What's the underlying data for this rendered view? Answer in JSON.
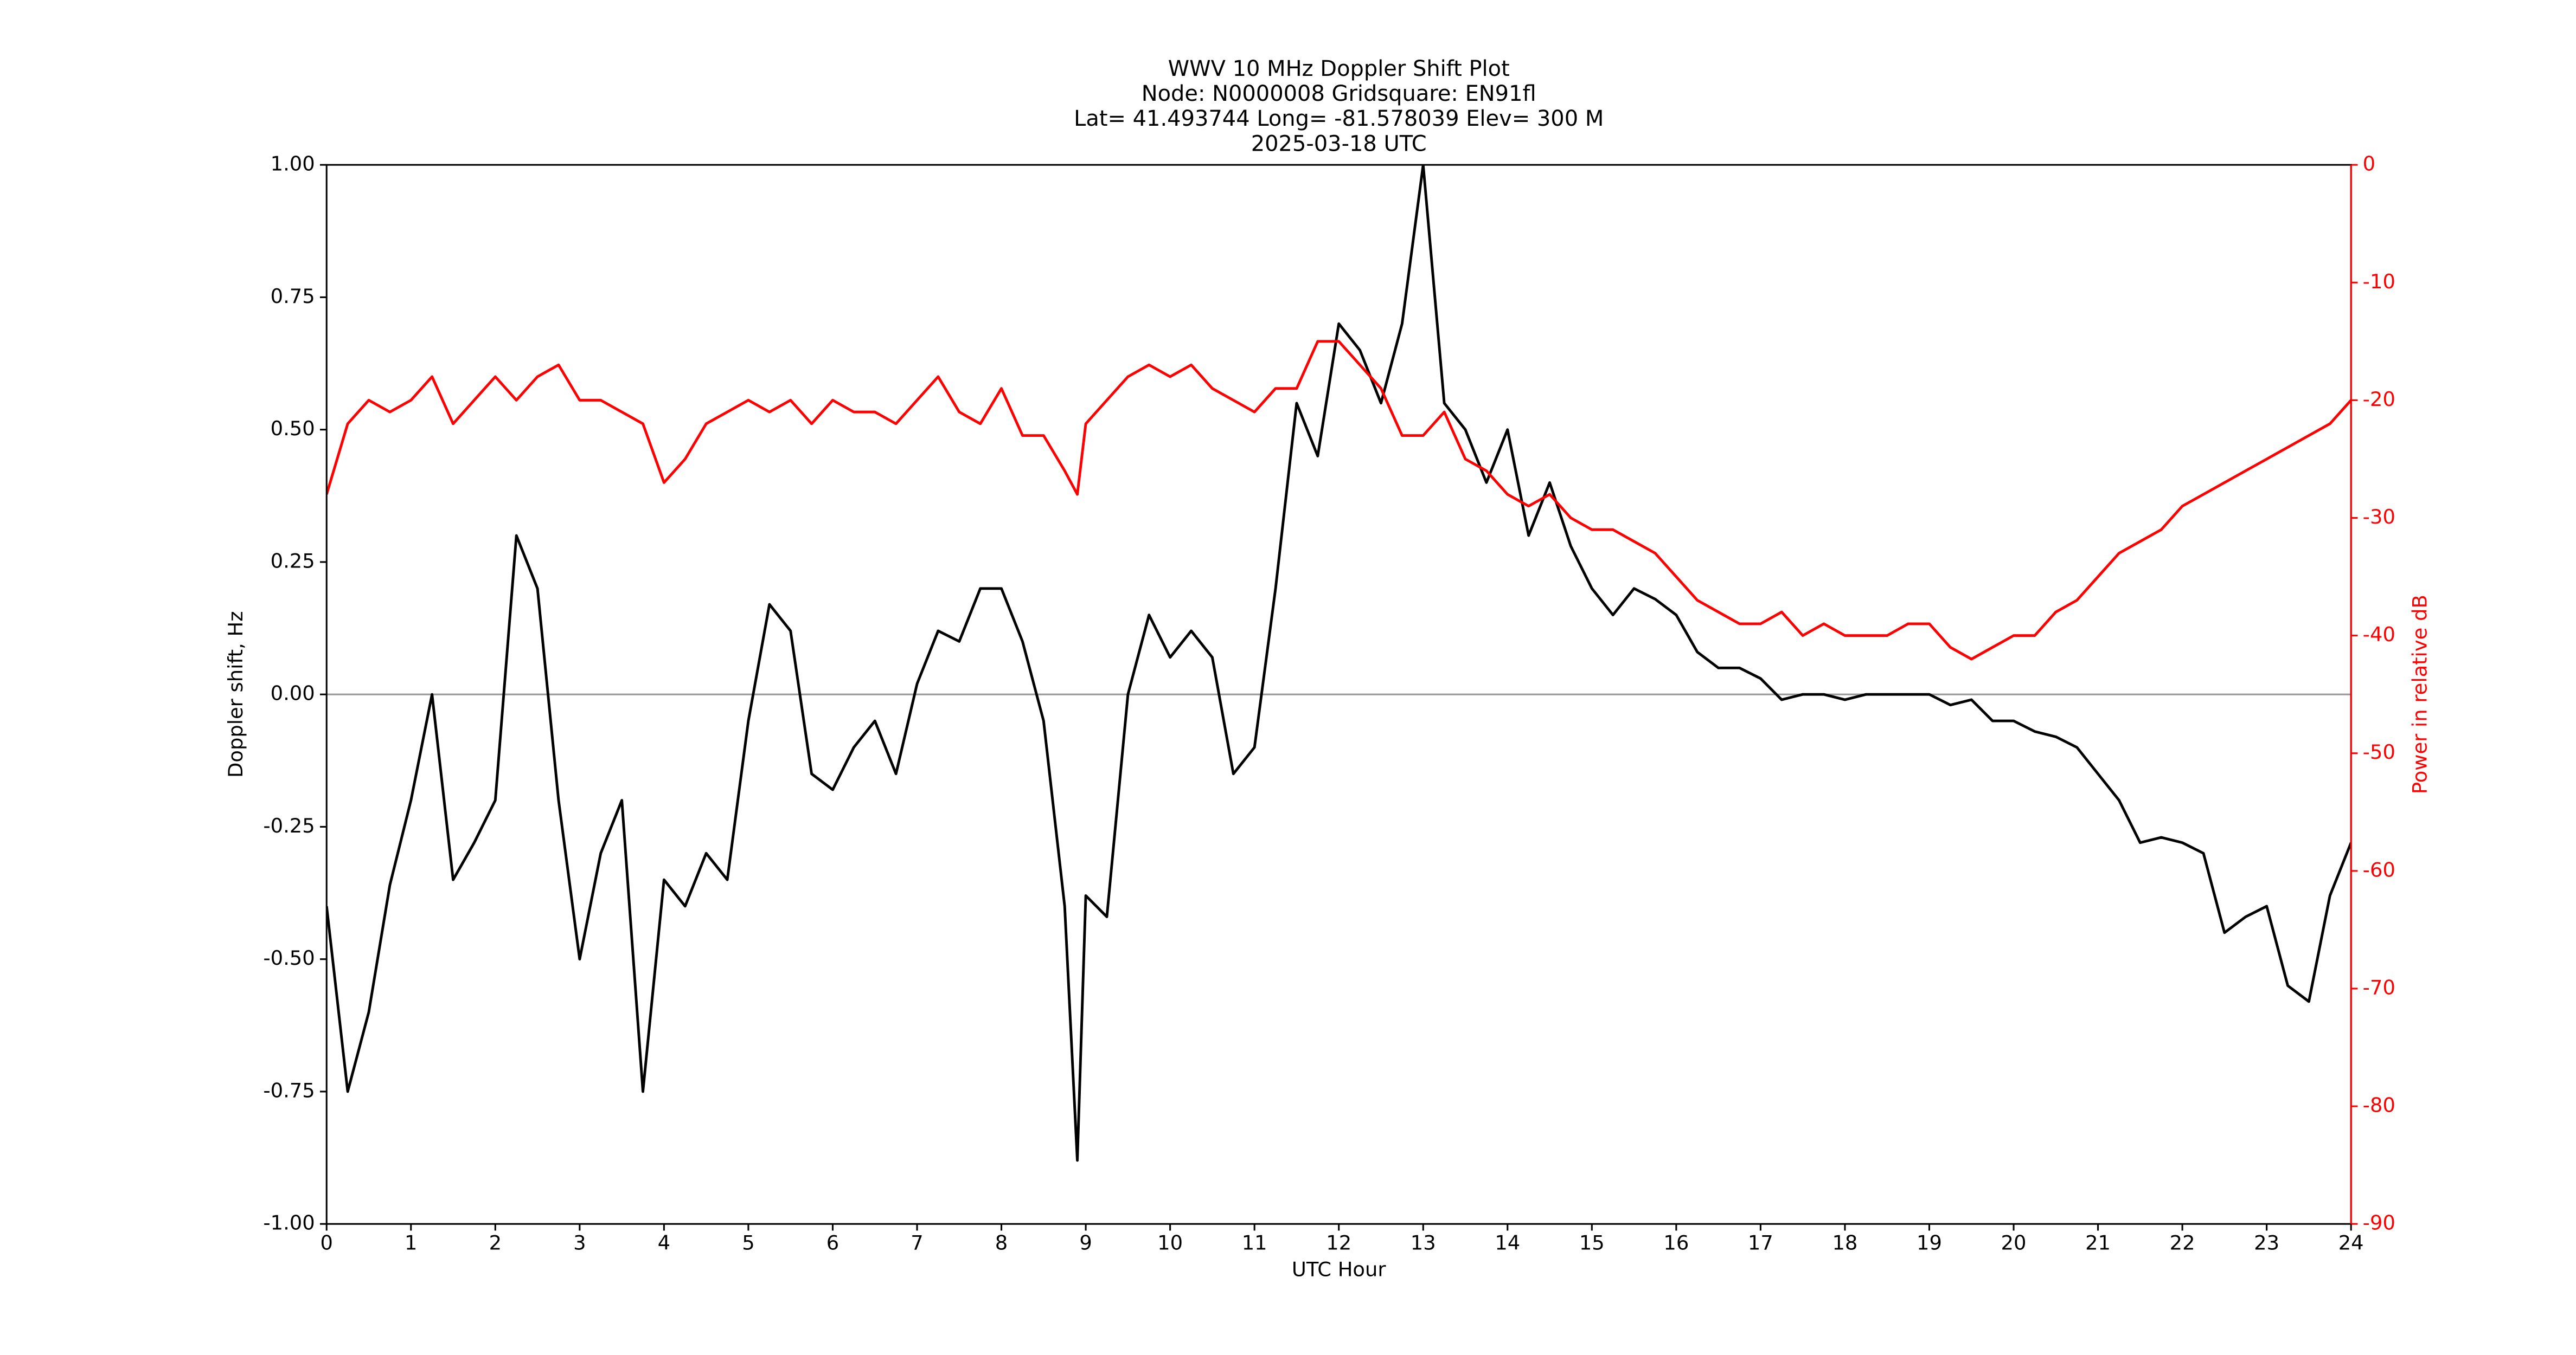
{
  "chart_data": {
    "type": "line",
    "title": [
      "WWV 10 MHz Doppler Shift Plot",
      "Node:  N0000008     Gridsquare:  EN91fl",
      "Lat= 41.493744    Long=  -81.578039    Elev=  300 M",
      "2025-03-18  UTC"
    ],
    "x_label": "UTC Hour",
    "y_label": "Doppler shift, Hz",
    "y2_label": "Power in relative dB",
    "x": [
      0,
      0.25,
      0.5,
      0.75,
      1,
      1.25,
      1.5,
      1.75,
      2,
      2.25,
      2.5,
      2.75,
      3,
      3.25,
      3.5,
      3.75,
      4,
      4.25,
      4.5,
      4.75,
      5,
      5.25,
      5.5,
      5.75,
      6,
      6.25,
      6.5,
      6.75,
      7,
      7.25,
      7.5,
      7.75,
      8,
      8.25,
      8.5,
      8.75,
      8.9,
      9,
      9.25,
      9.5,
      9.75,
      10,
      10.25,
      10.5,
      10.75,
      11,
      11.25,
      11.5,
      11.75,
      12,
      12.25,
      12.5,
      12.75,
      13,
      13.25,
      13.5,
      13.75,
      14,
      14.25,
      14.5,
      14.75,
      15,
      15.25,
      15.5,
      15.75,
      16,
      16.25,
      16.5,
      16.75,
      17,
      17.25,
      17.5,
      17.75,
      18,
      18.25,
      18.5,
      18.75,
      19,
      19.25,
      19.5,
      19.75,
      20,
      20.25,
      20.5,
      20.75,
      21,
      21.25,
      21.5,
      21.75,
      22,
      22.25,
      22.5,
      22.75,
      23,
      23.25,
      23.5,
      23.75,
      24
    ],
    "series": [
      {
        "name": "Doppler shift",
        "color": "#000000",
        "values": [
          -0.4,
          -0.75,
          -0.6,
          -0.36,
          -0.2,
          0.0,
          -0.35,
          -0.28,
          -0.2,
          0.3,
          0.2,
          -0.2,
          -0.5,
          -0.3,
          -0.2,
          -0.75,
          -0.35,
          -0.4,
          -0.3,
          -0.35,
          -0.05,
          0.17,
          0.12,
          -0.15,
          -0.18,
          -0.1,
          -0.05,
          -0.15,
          0.02,
          0.12,
          0.1,
          0.2,
          0.2,
          0.1,
          -0.05,
          -0.4,
          -0.88,
          -0.38,
          -0.42,
          0.0,
          0.15,
          0.07,
          0.12,
          0.07,
          -0.15,
          -0.1,
          0.2,
          0.55,
          0.45,
          0.7,
          0.65,
          0.55,
          0.7,
          1.0,
          0.55,
          0.5,
          0.4,
          0.5,
          0.3,
          0.4,
          0.28,
          0.2,
          0.15,
          0.2,
          0.18,
          0.15,
          0.08,
          0.05,
          0.05,
          0.03,
          -0.01,
          0.0,
          0.0,
          -0.01,
          0.0,
          0.0,
          0.0,
          0.0,
          -0.02,
          -0.01,
          -0.05,
          -0.05,
          -0.07,
          -0.08,
          -0.1,
          -0.15,
          -0.2,
          -0.28,
          -0.27,
          -0.28,
          -0.3,
          -0.45,
          -0.42,
          -0.4,
          -0.55,
          -0.58,
          -0.38,
          -0.28
        ]
      },
      {
        "name": "Power",
        "color": "#ff0000",
        "axis": "y2",
        "values": [
          -28,
          -22,
          -20,
          -21,
          -20,
          -18,
          -22,
          -20,
          -18,
          -20,
          -18,
          -17,
          -20,
          -20,
          -21,
          -22,
          -27,
          -25,
          -22,
          -21,
          -20,
          -21,
          -20,
          -22,
          -20,
          -21,
          -21,
          -22,
          -20,
          -18,
          -21,
          -22,
          -19,
          -23,
          -23,
          -26,
          -28,
          -22,
          -20,
          -18,
          -17,
          -18,
          -17,
          -19,
          -20,
          -21,
          -19,
          -19,
          -15,
          -15,
          -17,
          -19,
          -23,
          -23,
          -21,
          -25,
          -26,
          -28,
          -29,
          -28,
          -30,
          -31,
          -31,
          -32,
          -33,
          -35,
          -37,
          -38,
          -39,
          -39,
          -38,
          -40,
          -39,
          -40,
          -40,
          -40,
          -39,
          -39,
          -41,
          -42,
          -41,
          -40,
          -40,
          -38,
          -37,
          -35,
          -33,
          -32,
          -31,
          -29,
          -28,
          -27,
          -26,
          -25,
          -24,
          -23,
          -22,
          -20
        ]
      }
    ],
    "xlim": [
      0,
      24
    ],
    "xticks": [
      0,
      1,
      2,
      3,
      4,
      5,
      6,
      7,
      8,
      9,
      10,
      11,
      12,
      13,
      14,
      15,
      16,
      17,
      18,
      19,
      20,
      21,
      22,
      23,
      24
    ],
    "ylim": [
      -1,
      1
    ],
    "yticks": [
      {
        "value": -1,
        "label": "-1.00"
      },
      {
        "value": -0.75,
        "label": "-0.75"
      },
      {
        "value": -0.5,
        "label": "-0.50"
      },
      {
        "value": -0.25,
        "label": "-0.25"
      },
      {
        "value": 0,
        "label": "0.00"
      },
      {
        "value": 0.25,
        "label": "0.25"
      },
      {
        "value": 0.5,
        "label": "0.50"
      },
      {
        "value": 0.75,
        "label": "0.75"
      },
      {
        "value": 1,
        "label": "1.00"
      }
    ],
    "y2lim": [
      -90,
      0
    ],
    "y2ticks": [
      -90,
      -80,
      -70,
      -60,
      -50,
      -40,
      -30,
      -20,
      -10,
      0
    ],
    "reference_line": 0,
    "reference_color": "#999999"
  }
}
